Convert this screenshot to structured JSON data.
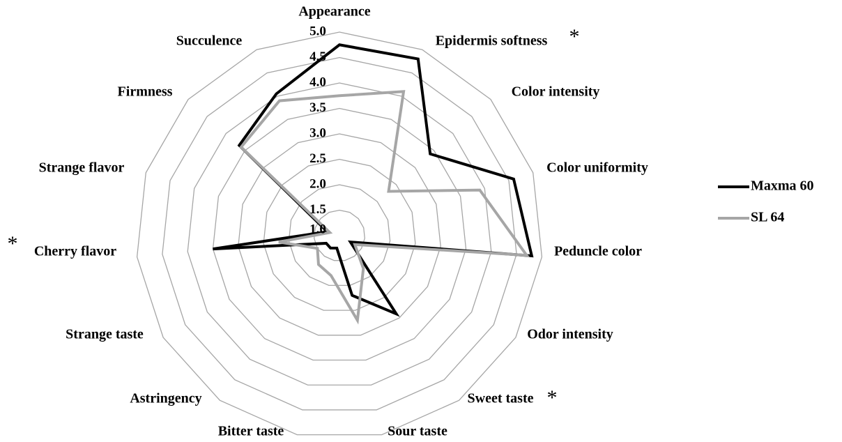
{
  "chart_data": {
    "type": "radar",
    "categories": [
      "Appearance",
      "Epidermis softness",
      "Color intensity",
      "Color uniformity",
      "Peduncle color",
      "Odor intensity",
      "Sweet taste",
      "Sour taste",
      "Bitter taste",
      "Astringency",
      "Strange taste",
      "Cherry flavor",
      "Strange flavor",
      "Firmness",
      "Succulence"
    ],
    "series": [
      {
        "name": "Maxma 60",
        "color": "#000000",
        "values": [
          4.75,
          4.8,
          3.4,
          4.6,
          4.8,
          1.25,
          2.9,
          2.2,
          1.25,
          1.3,
          1.3,
          3.5,
          1.25,
          3.65,
          4.05
        ]
      },
      {
        "name": "SL 64",
        "color": "#a6a6a6",
        "values": [
          3.75,
          4.1,
          2.3,
          3.9,
          4.7,
          1.35,
          1.8,
          2.7,
          1.8,
          1.7,
          1.5,
          2.2,
          1.2,
          3.6,
          3.9
        ]
      }
    ],
    "ylim": [
      1,
      5
    ],
    "yticks": [
      {
        "value": 1,
        "label": "1.0"
      },
      1.5,
      {
        "value": 2,
        "label": "2.0"
      },
      2.5,
      {
        "value": 3,
        "label": "3.0"
      },
      3.5,
      {
        "value": 4,
        "label": "4.0"
      },
      4.5,
      {
        "value": 5,
        "label": "5.0"
      }
    ],
    "grid": true,
    "legend": "right",
    "annotations": [
      "*",
      "*",
      "*"
    ]
  }
}
